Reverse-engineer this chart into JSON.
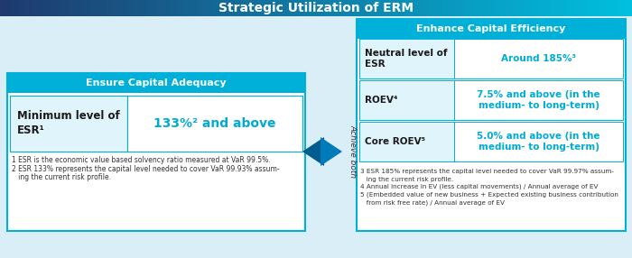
{
  "title": "Strategic Utilization of ERM",
  "title_color": "#ffffff",
  "title_bg_left": "#1e3a6e",
  "title_bg_right": "#00c0e0",
  "main_bg": "#daeef8",
  "left_header": "Ensure Capital Adequacy",
  "right_header": "Enhance Capital Efficiency",
  "header_bg": "#00b0d8",
  "header_color": "#ffffff",
  "box_bg": "#ffffff",
  "box_border": "#00b0d8",
  "inner_left_bg": "#e0f4fb",
  "cyan_text": "#00aad4",
  "dark_text": "#1a1a1a",
  "left_label": "Minimum level of\nESR¹",
  "left_value": "133%² and above",
  "footnotes_left": [
    "1 ESR is the economic value based solvency ratio measured at VaR 99.5%.",
    "2 ESR 133% represents the capital level needed to cover VaR 99.93% assum-",
    "   ing the current risk profile."
  ],
  "right_rows": [
    {
      "label": "Neutral level of\nESR",
      "value": "Around 185%³"
    },
    {
      "label": "ROEV⁴",
      "value": "7.5% and above (in the\nmedium- to long-term)"
    },
    {
      "label": "Core ROEV⁵",
      "value": "5.0% and above (in the\nmedium- to long-term)"
    }
  ],
  "right_footnotes": [
    "3 ESR 185% represents the capital level needed to cover VaR 99.97% assum-",
    "   ing the current risk profile.",
    "4 Annual increase in EV (less capital movements) / Annual average of EV",
    "5 (Embedded value of new business + Expected existing business contribution",
    "   from risk free rate) / Annual average of EV"
  ],
  "middle_text": "Achieve both",
  "arrow_color": "#005b8e",
  "arrow_light": "#007ab8"
}
